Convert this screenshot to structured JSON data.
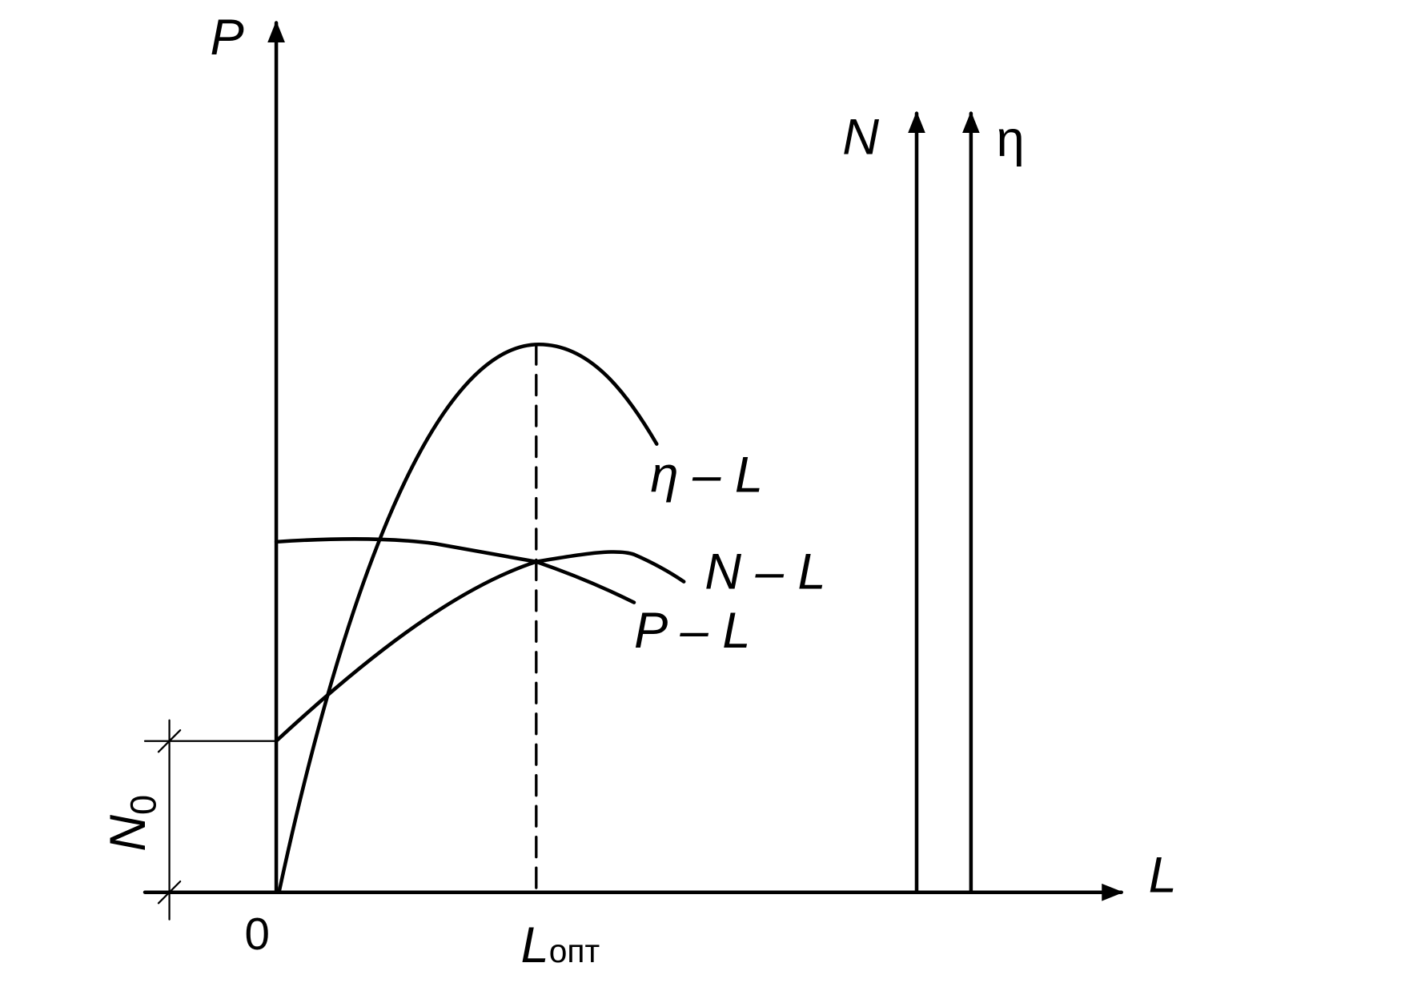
{
  "axes": {
    "vertical_left": "P",
    "horizontal": "L",
    "vertical_right_1": "N",
    "vertical_right_2": "η",
    "origin": "0"
  },
  "markers": {
    "optimum": {
      "main": "L",
      "subscript": "опт"
    },
    "offset": {
      "main": "N",
      "subscript": "0"
    }
  },
  "curves": [
    "η – L",
    "N – L",
    "P – L"
  ]
}
